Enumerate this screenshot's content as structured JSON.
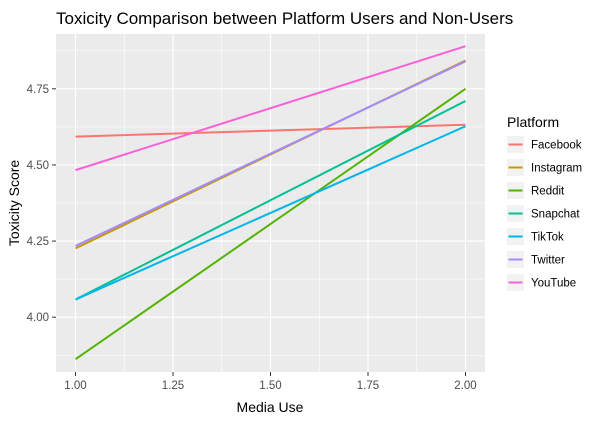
{
  "chart_data": {
    "type": "line",
    "title": "Toxicity Comparison between Platform Users and Non-Users",
    "xlabel": "Media Use",
    "ylabel": "Toxicity Score",
    "xlim": [
      0.95,
      2.05
    ],
    "ylim": [
      3.82,
      4.93
    ],
    "x_ticks": [
      1.0,
      1.25,
      1.5,
      1.75,
      2.0
    ],
    "x_tick_labels": [
      "1.00",
      "1.25",
      "1.50",
      "1.75",
      "2.00"
    ],
    "y_ticks": [
      4.0,
      4.25,
      4.5,
      4.75
    ],
    "y_tick_labels": [
      "4.00",
      "4.25",
      "4.50",
      "4.75"
    ],
    "x": [
      1.0,
      2.0
    ],
    "grid": true,
    "background": "#ebebeb",
    "legend": {
      "title": "Platform",
      "position": "right"
    },
    "series": [
      {
        "name": "Facebook",
        "values": [
          4.593,
          4.632
        ],
        "color": "#f8766d"
      },
      {
        "name": "Instagram",
        "values": [
          4.226,
          4.843
        ],
        "color": "#c49a00"
      },
      {
        "name": "Reddit",
        "values": [
          3.862,
          4.75
        ],
        "color": "#53b400"
      },
      {
        "name": "Snapchat",
        "values": [
          4.058,
          4.71
        ],
        "color": "#00c094"
      },
      {
        "name": "TikTok",
        "values": [
          4.058,
          4.627
        ],
        "color": "#00b6eb"
      },
      {
        "name": "Twitter",
        "values": [
          4.234,
          4.84
        ],
        "color": "#a58aff"
      },
      {
        "name": "YouTube",
        "values": [
          4.483,
          4.89
        ],
        "color": "#fb61d7"
      }
    ]
  }
}
